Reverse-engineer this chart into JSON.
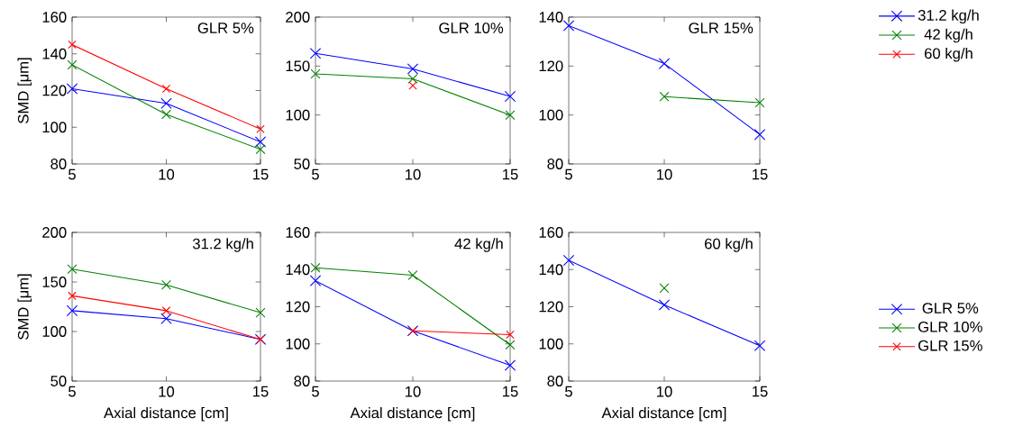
{
  "chart_data": [
    {
      "type": "line",
      "title": "GLR 5%",
      "ylabel": "SMD [μm]",
      "x": [
        5,
        10,
        15
      ],
      "xlim": [
        5,
        15
      ],
      "xticks": [
        5,
        10,
        15
      ],
      "ylim": [
        80,
        160
      ],
      "yticks": [
        80,
        100,
        120,
        140,
        160
      ],
      "marker": "cross",
      "line_style": "solid",
      "series": [
        {
          "color": "#0000ff",
          "values": [
            121,
            113,
            92
          ]
        },
        {
          "color": "#008000",
          "values": [
            134,
            107,
            88
          ]
        },
        {
          "color": "#ff0000",
          "values": [
            145,
            121,
            99
          ]
        }
      ]
    },
    {
      "type": "line",
      "title": "GLR 10%",
      "x": [
        5,
        10,
        15
      ],
      "xlim": [
        5,
        15
      ],
      "xticks": [
        5,
        10,
        15
      ],
      "ylim": [
        50,
        200
      ],
      "yticks": [
        50,
        100,
        150,
        200
      ],
      "marker": "cross",
      "line_style": "solid",
      "series": [
        {
          "color": "#0000ff",
          "values": [
            163,
            147,
            119
          ]
        },
        {
          "color": "#008000",
          "values": [
            142,
            137,
            100
          ]
        },
        {
          "color": "#ff0000",
          "values": [
            null,
            130,
            null
          ]
        }
      ]
    },
    {
      "type": "line",
      "title": "GLR 15%",
      "x": [
        5,
        10,
        15
      ],
      "xlim": [
        5,
        15
      ],
      "xticks": [
        5,
        10,
        15
      ],
      "ylim": [
        80,
        140
      ],
      "yticks": [
        80,
        100,
        120,
        140
      ],
      "marker": "cross",
      "line_style": "solid",
      "legend": "right",
      "series": [
        {
          "name": "31.2 kg/h",
          "color": "#0000ff",
          "values": [
            136.5,
            121,
            92
          ]
        },
        {
          "name": "42 kg/h",
          "color": "#008000",
          "values": [
            null,
            107.5,
            105
          ]
        },
        {
          "name": "60 kg/h",
          "color": "#ff0000",
          "values": [
            null,
            null,
            null
          ]
        }
      ]
    },
    {
      "type": "line",
      "title": "31.2 kg/h",
      "ylabel": "SMD [μm]",
      "xlabel": "Axial distance [cm]",
      "x": [
        5,
        10,
        15
      ],
      "xlim": [
        5,
        15
      ],
      "xticks": [
        5,
        10,
        15
      ],
      "ylim": [
        50,
        200
      ],
      "yticks": [
        50,
        100,
        150,
        200
      ],
      "marker": "cross",
      "line_style": "solid",
      "series": [
        {
          "color": "#0000ff",
          "values": [
            121,
            113,
            92
          ]
        },
        {
          "color": "#008000",
          "values": [
            163,
            147,
            119
          ]
        },
        {
          "color": "#ff0000",
          "values": [
            136,
            121,
            92
          ]
        }
      ]
    },
    {
      "type": "line",
      "title": "42 kg/h",
      "xlabel": "Axial distance [cm]",
      "x": [
        5,
        10,
        15
      ],
      "xlim": [
        5,
        15
      ],
      "xticks": [
        5,
        10,
        15
      ],
      "ylim": [
        80,
        160
      ],
      "yticks": [
        80,
        100,
        120,
        140,
        160
      ],
      "marker": "cross",
      "line_style": "solid",
      "series": [
        {
          "color": "#0000ff",
          "values": [
            134,
            107,
            88.5
          ]
        },
        {
          "color": "#008000",
          "values": [
            141,
            137,
            99.5
          ]
        },
        {
          "color": "#ff0000",
          "values": [
            null,
            107,
            105
          ]
        }
      ]
    },
    {
      "type": "line",
      "title": "60 kg/h",
      "xlabel": "Axial distance [cm]",
      "x": [
        5,
        10,
        15
      ],
      "xlim": [
        5,
        15
      ],
      "xticks": [
        5,
        10,
        15
      ],
      "ylim": [
        80,
        160
      ],
      "yticks": [
        80,
        100,
        120,
        140,
        160
      ],
      "marker": "cross",
      "line_style": "solid",
      "legend": "right",
      "series": [
        {
          "name": "GLR 5%",
          "color": "#0000ff",
          "values": [
            145,
            121,
            99
          ]
        },
        {
          "name": "GLR 10%",
          "color": "#008000",
          "values": [
            null,
            130,
            null
          ]
        },
        {
          "name": "GLR 15%",
          "color": "#ff0000",
          "values": [
            null,
            null,
            null
          ]
        }
      ]
    }
  ]
}
